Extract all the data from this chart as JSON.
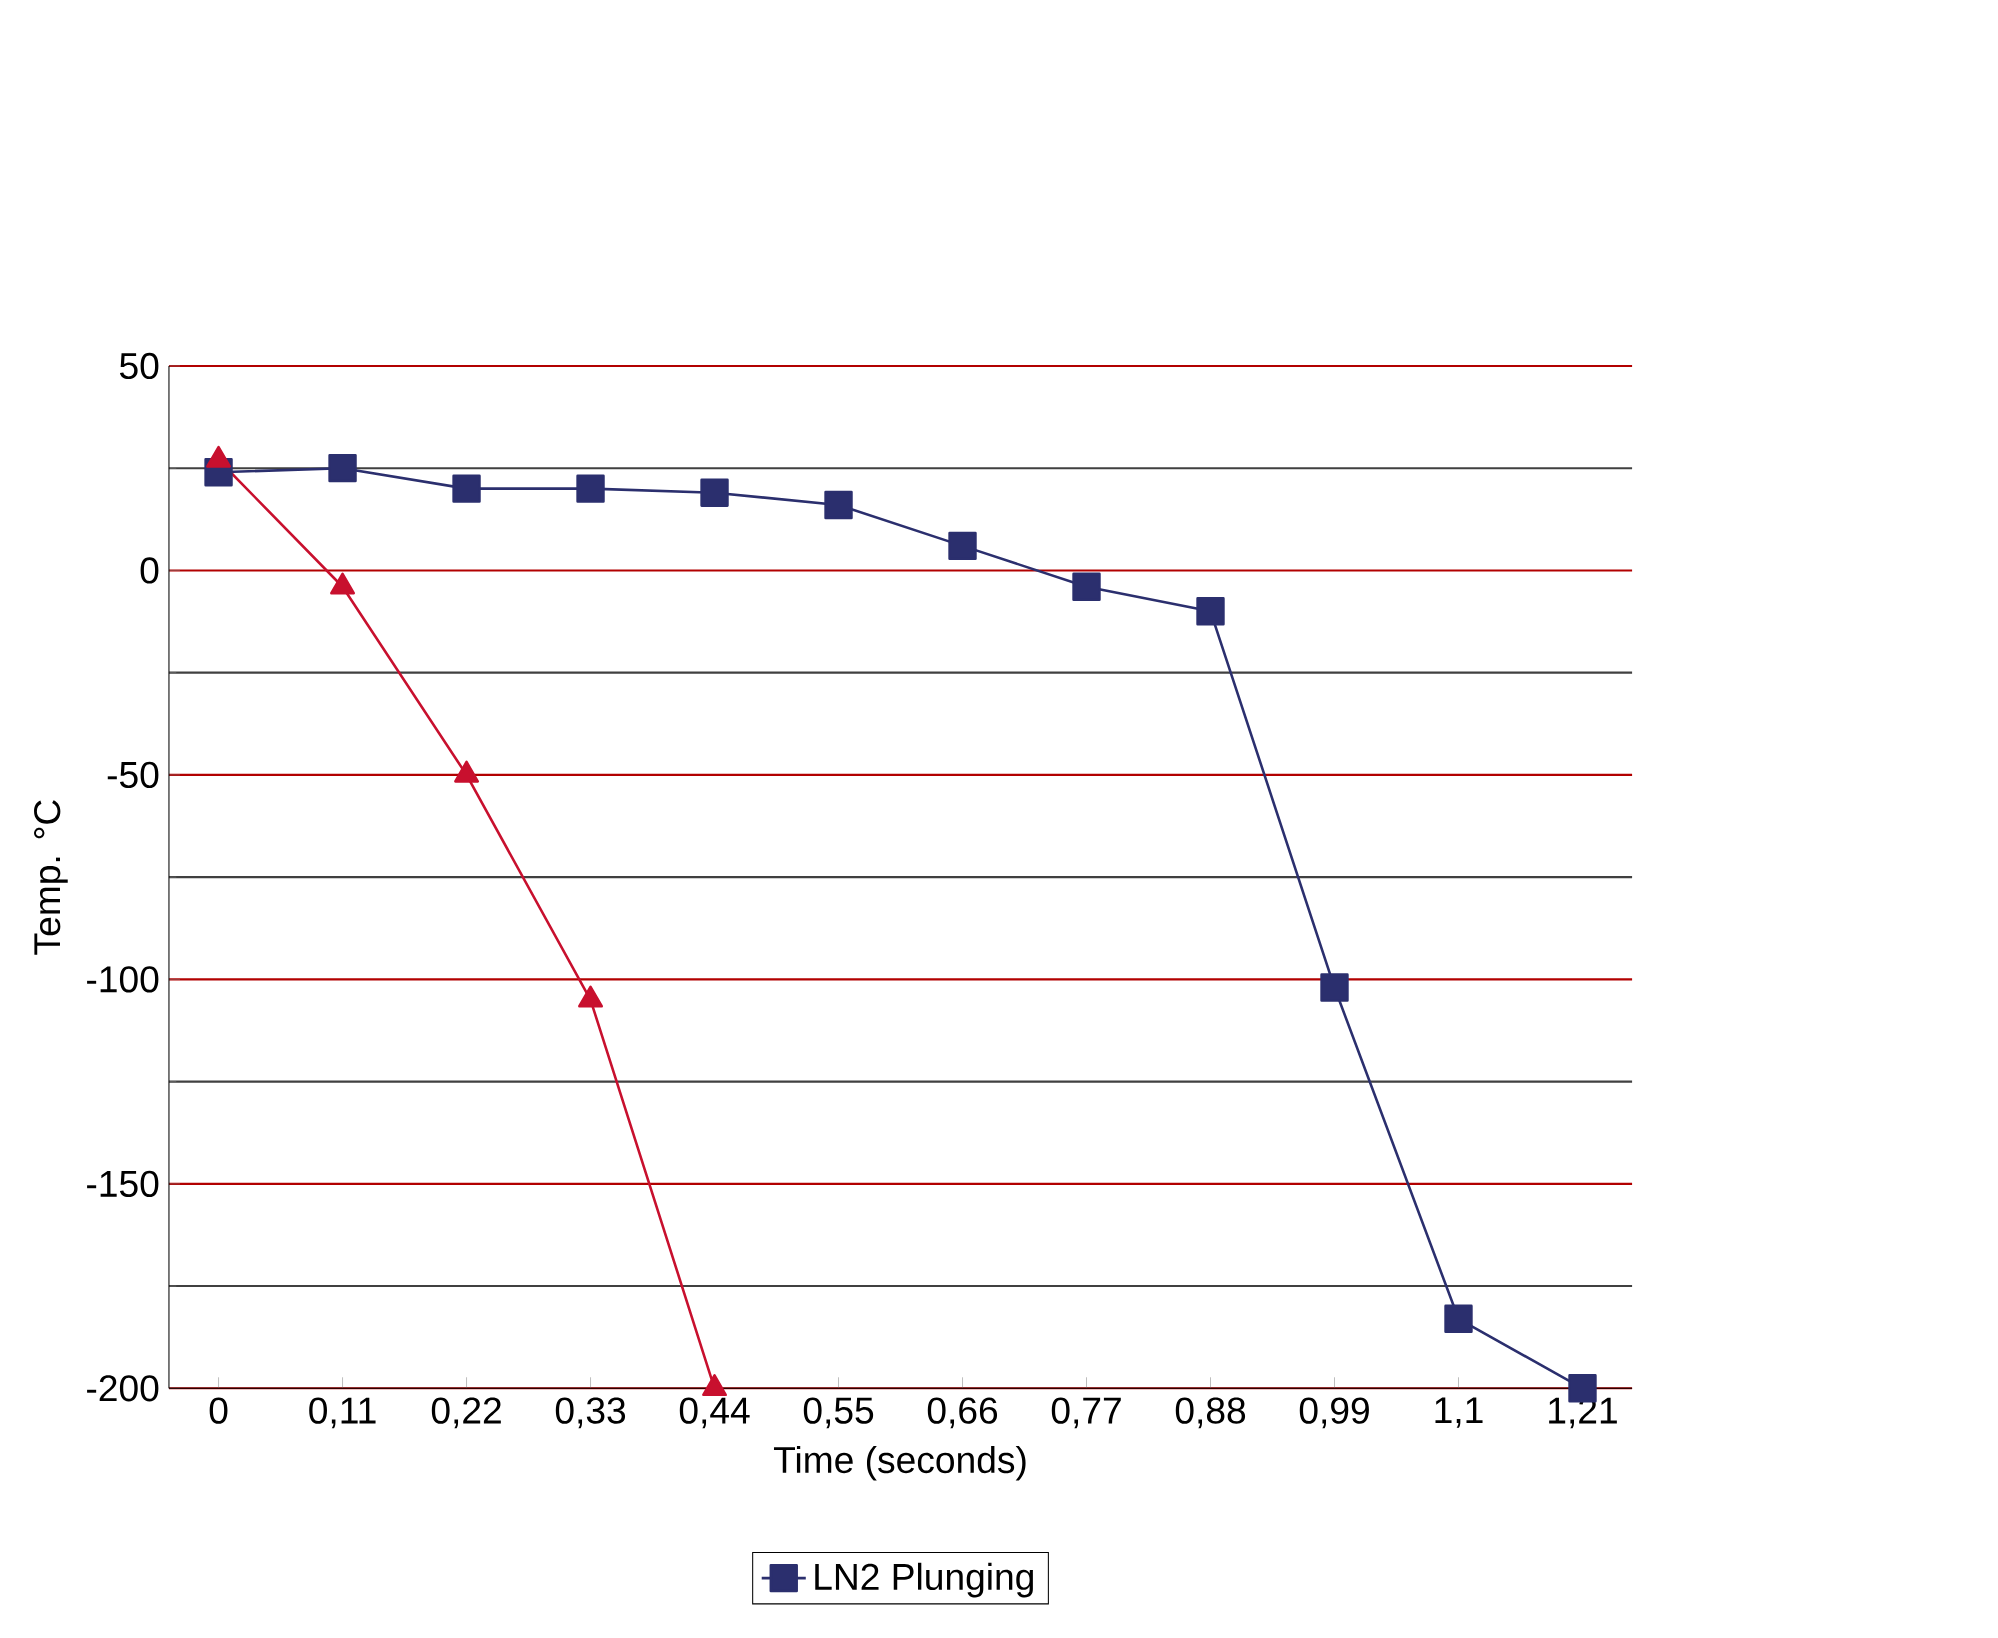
{
  "chart_data": {
    "type": "line",
    "xlabel": "Time (seconds)",
    "ylabel": "Temp. °C",
    "categories": [
      "0",
      "0,11",
      "0,22",
      "0,33",
      "0,44",
      "0,55",
      "0,66",
      "0,77",
      "0,88",
      "0,99",
      "1,1",
      "1,21"
    ],
    "series": [
      {
        "name": "LN2 Plunging",
        "color": "#2b2f6e",
        "marker": "square",
        "values": [
          24,
          25,
          20,
          20,
          19,
          16,
          6,
          -4,
          -10,
          -102,
          -183,
          -200
        ]
      },
      {
        "color": "#c8102e",
        "marker": "triangle",
        "values": [
          27,
          -4,
          -50,
          -105,
          -200,
          null,
          null,
          null,
          null,
          null,
          null,
          null
        ]
      }
    ],
    "ylim": [
      -200,
      50
    ],
    "yticks": [
      -200,
      -150,
      -100,
      -50,
      0,
      50
    ],
    "grid": "y",
    "legend": "bottom"
  }
}
